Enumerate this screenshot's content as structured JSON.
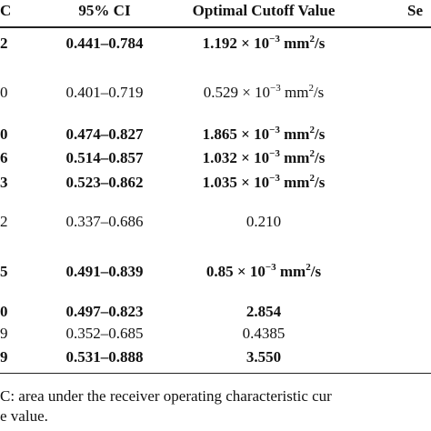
{
  "table": {
    "header": [
      "C",
      "95% CI",
      "Optimal Cutoff Value",
      "Se"
    ],
    "rows": [
      {
        "left": "2",
        "ci": "0.441–0.784",
        "cutoff": [
          "1.192 × 10",
          "−3",
          " mm",
          "2",
          "/s"
        ],
        "bold": true
      },
      {
        "left": "0",
        "ci": "0.401–0.719",
        "cutoff": [
          "0.529 × 10",
          "−3",
          " mm",
          "2",
          "/s"
        ],
        "bold": false
      },
      {
        "left": "0",
        "ci": "0.474–0.827",
        "cutoff": [
          "1.865 × 10",
          "−3",
          " mm",
          "2",
          "/s"
        ],
        "bold": true
      },
      {
        "left": "6",
        "ci": "0.514–0.857",
        "cutoff": [
          "1.032 × 10",
          "−3",
          " mm",
          "2",
          "/s"
        ],
        "bold": true
      },
      {
        "left": "3",
        "ci": "0.523–0.862",
        "cutoff": [
          "1.035 × 10",
          "−3",
          " mm",
          "2",
          "/s"
        ],
        "bold": true
      },
      {
        "left": "2",
        "ci": "0.337–0.686",
        "cutoff": [
          "0.210"
        ],
        "bold": false
      },
      {
        "left": "5",
        "ci": "0.491–0.839",
        "cutoff": [
          "0.85 × 10",
          "−3",
          " mm",
          "2",
          "/s"
        ],
        "bold": true
      },
      {
        "left": "0",
        "ci": "0.497–0.823",
        "cutoff": [
          "2.854"
        ],
        "bold": true
      },
      {
        "left": "9",
        "ci": "0.352–0.685",
        "cutoff": [
          "0.4385"
        ],
        "bold": false
      },
      {
        "left": "9",
        "ci": "0.531–0.888",
        "cutoff": [
          "3.550"
        ],
        "bold": true
      }
    ],
    "footnotes": [
      "C: area under the receiver operating characteristic cur",
      "e value."
    ]
  }
}
